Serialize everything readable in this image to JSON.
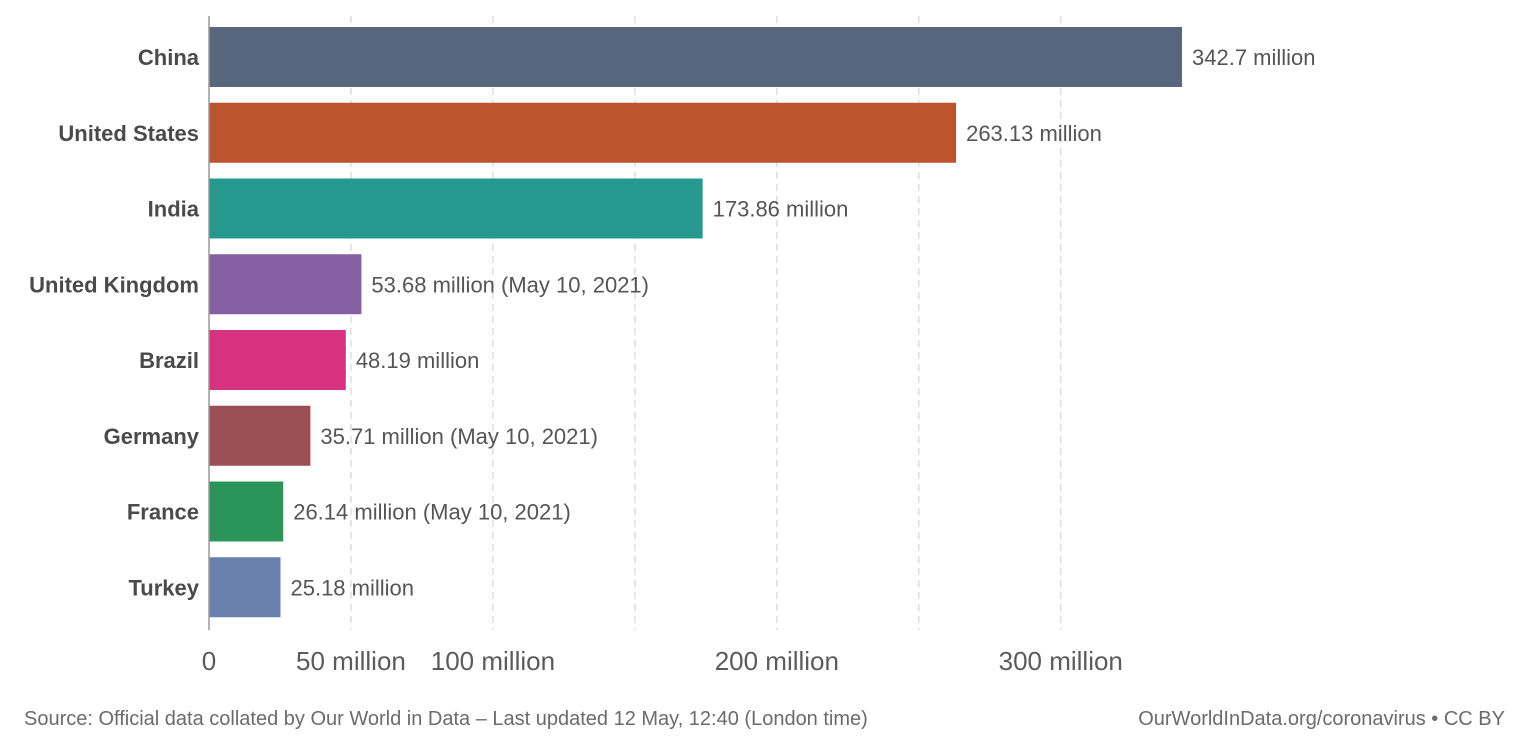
{
  "chart_data": {
    "type": "bar",
    "orientation": "horizontal",
    "title": "",
    "xlabel": "",
    "ylabel": "",
    "xlim": [
      0,
      342.7
    ],
    "grid": true,
    "categories": [
      "China",
      "United States",
      "India",
      "United Kingdom",
      "Brazil",
      "Germany",
      "France",
      "Turkey"
    ],
    "values": [
      342.7,
      263.13,
      173.86,
      53.68,
      48.19,
      35.71,
      26.14,
      25.18
    ],
    "value_unit": "million",
    "data_labels": [
      "342.7 million",
      "263.13 million",
      "173.86 million",
      "53.68 million (May 10, 2021)",
      "48.19 million",
      "35.71 million (May 10, 2021)",
      "26.14 million (May 10, 2021)",
      "25.18 million"
    ],
    "colors": [
      "#58677e",
      "#bc542e",
      "#25998e",
      "#8560a3",
      "#d6327f",
      "#9b4f55",
      "#2b9458",
      "#6a81ad"
    ],
    "ticks": [
      {
        "value": 0,
        "label": "0"
      },
      {
        "value": 50,
        "label": "50 million"
      },
      {
        "value": 100,
        "label": "100 million"
      },
      {
        "value": 200,
        "label": "200 million"
      },
      {
        "value": 300,
        "label": "300 million"
      }
    ],
    "gridlines": [
      50,
      100,
      150,
      200,
      250,
      300
    ]
  },
  "footer": {
    "source": "Source: Official data collated by Our World in Data – Last updated 12 May, 12:40 (London time)",
    "link": "OurWorldInData.org/coronavirus • CC BY"
  }
}
